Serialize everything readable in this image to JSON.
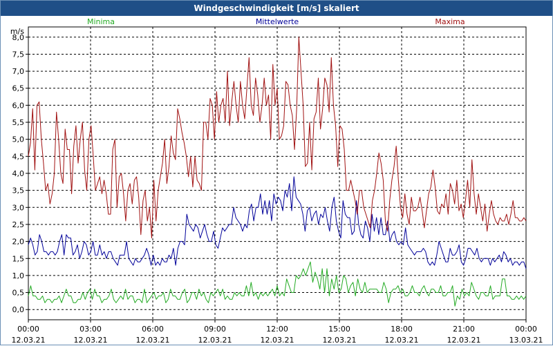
{
  "chart_data": {
    "type": "line",
    "title": "Windgeschwindigkeit [m/s] skaliert",
    "ylabel": "m/s",
    "ylim": [
      -0.3,
      8.3
    ],
    "yticks": [
      "0,0",
      "0,5",
      "1,0",
      "1,5",
      "2,0",
      "2,5",
      "3,0",
      "3,5",
      "4,0",
      "4,5",
      "5,0",
      "5,5",
      "6,0",
      "6,5",
      "7,0",
      "7,5",
      "8,0"
    ],
    "xlim": [
      0,
      24
    ],
    "xticks": [
      {
        "time": "00:00",
        "date": "12.03.21"
      },
      {
        "time": "03:00",
        "date": "12.03.21"
      },
      {
        "time": "06:00",
        "date": "12.03.21"
      },
      {
        "time": "09:00",
        "date": "12.03.21"
      },
      {
        "time": "12:00",
        "date": "12.03.21"
      },
      {
        "time": "15:00",
        "date": "12.03.21"
      },
      {
        "time": "18:00",
        "date": "12.03.21"
      },
      {
        "time": "21:00",
        "date": "12.03.21"
      },
      {
        "time": "00:00",
        "date": "13.03.21"
      }
    ],
    "grid": true,
    "legend_placement": "top",
    "series": [
      {
        "name": "Minima",
        "color": "#22aa22",
        "values": [
          0.4,
          0.7,
          0.4,
          0.4,
          0.3,
          0.3,
          0.4,
          0.2,
          0.3,
          0.3,
          0.2,
          0.3,
          0.3,
          0.4,
          0.2,
          0.4,
          0.6,
          0.4,
          0.4,
          0.2,
          0.2,
          0.3,
          0.3,
          0.5,
          0.3,
          0.5,
          0.6,
          0.3,
          0.6,
          0.4,
          0.4,
          0.2,
          0.3,
          0.3,
          0.4,
          0.6,
          0.3,
          0.2,
          0.3,
          0.4,
          0.3,
          0.6,
          0.3,
          0.4,
          0.4,
          0.2,
          0.3,
          0.3,
          0.2,
          0.6,
          0.2,
          0.3,
          0.4,
          0.5,
          0.3,
          0.4,
          0.4,
          0.5,
          0.2,
          0.3,
          0.6,
          0.4,
          0.4,
          0.3,
          0.3,
          0.5,
          0.6,
          0.2,
          0.3,
          0.5,
          0.5,
          0.3,
          0.6,
          0.4,
          0.5,
          0.3,
          0.2,
          0.5,
          0.4,
          0.5,
          0.6,
          0.4,
          0.6,
          0.3,
          0.4,
          0.3,
          0.3,
          0.5,
          0.4,
          0.5,
          0.4,
          0.4,
          0.7,
          0.4,
          0.8,
          0.4,
          0.5,
          0.3,
          0.5,
          0.4,
          0.5,
          0.4,
          0.5,
          0.6,
          0.4,
          0.7,
          0.4,
          0.5,
          0.4,
          0.9,
          0.7,
          0.5,
          0.5,
          1.0,
          0.9,
          1.0,
          1.2,
          1.0,
          1.2,
          1.4,
          0.8,
          1.1,
          0.9,
          0.6,
          1.2,
          0.5,
          1.2,
          0.4,
          0.9,
          0.6,
          1.0,
          0.5,
          0.6,
          1.0,
          0.9,
          0.5,
          0.7,
          0.8,
          0.4,
          0.9,
          0.6,
          0.5,
          0.8,
          0.5,
          0.6,
          0.6,
          0.6,
          0.6,
          0.5,
          0.5,
          0.8,
          0.6,
          0.2,
          0.5,
          0.6,
          0.6,
          0.7,
          0.5,
          0.6,
          0.4,
          0.4,
          0.5,
          0.7,
          0.5,
          0.5,
          0.4,
          0.6,
          0.7,
          0.5,
          0.4,
          0.6,
          0.6,
          0.5,
          0.5,
          0.7,
          0.4,
          0.4,
          0.5,
          0.5,
          0.7,
          0.1,
          0.4,
          0.3,
          0.6,
          0.4,
          0.5,
          0.4,
          0.8,
          0.6,
          0.4,
          0.3,
          0.5,
          0.5,
          0.4,
          0.4,
          0.7,
          0.3,
          0.4,
          0.4,
          0.4,
          0.9,
          0.9,
          0.4,
          0.4,
          0.3,
          0.3,
          0.4,
          0.3,
          0.4,
          0.3,
          0.4
        ]
      },
      {
        "name": "Mittelwerte",
        "color": "#000099",
        "values": [
          1.9,
          2.1,
          1.9,
          1.6,
          1.7,
          2.2,
          2.0,
          1.7,
          1.7,
          1.6,
          1.7,
          1.7,
          1.6,
          1.7,
          2.0,
          2.2,
          1.6,
          2.2,
          2.1,
          2.1,
          1.6,
          1.7,
          1.9,
          1.5,
          1.7,
          2.0,
          1.9,
          1.6,
          1.7,
          2.0,
          1.6,
          1.6,
          1.9,
          1.6,
          1.7,
          1.5,
          1.7,
          1.7,
          1.5,
          1.4,
          1.3,
          1.6,
          1.6,
          1.6,
          2.0,
          1.5,
          1.4,
          1.3,
          1.5,
          1.4,
          1.4,
          1.5,
          1.6,
          1.8,
          1.6,
          1.3,
          1.6,
          1.3,
          1.4,
          1.3,
          1.5,
          1.4,
          1.4,
          1.6,
          1.5,
          1.8,
          1.3,
          1.8,
          2.0,
          2.0,
          1.9,
          2.8,
          2.5,
          2.4,
          2.3,
          2.5,
          2.4,
          2.1,
          2.3,
          2.5,
          2.2,
          2.0,
          2.0,
          2.3,
          1.9,
          1.8,
          2.1,
          2.4,
          2.3,
          2.4,
          2.5,
          2.5,
          3.0,
          2.7,
          2.6,
          2.5,
          2.3,
          2.5,
          2.4,
          2.9,
          3.1,
          2.6,
          3.0,
          3.0,
          3.4,
          2.8,
          3.2,
          2.8,
          3.2,
          2.6,
          3.4,
          3.1,
          3.3,
          3.2,
          2.9,
          3.5,
          3.3,
          3.7,
          2.9,
          3.9,
          3.3,
          3.2,
          3.1,
          2.8,
          2.3,
          2.9,
          3.0,
          2.6,
          2.8,
          2.9,
          2.5,
          2.8,
          2.7,
          3.0,
          2.6,
          2.3,
          3.0,
          3.3,
          2.6,
          2.3,
          2.1,
          3.2,
          2.8,
          2.7,
          2.7,
          2.2,
          2.3,
          3.2,
          2.5,
          2.2,
          2.1,
          2.6,
          2.4,
          2.0,
          2.8,
          2.3,
          2.7,
          2.2,
          2.7,
          2.2,
          2.2,
          2.6,
          2.0,
          2.2,
          2.3,
          2.0,
          1.9,
          2.0,
          1.9,
          2.4,
          1.9,
          1.8,
          1.7,
          1.6,
          1.7,
          1.7,
          1.7,
          1.8,
          1.7,
          1.4,
          1.3,
          1.4,
          1.3,
          1.6,
          2.0,
          1.8,
          1.6,
          1.4,
          1.4,
          1.8,
          1.6,
          1.6,
          1.7,
          1.9,
          1.4,
          1.3,
          1.5,
          1.8,
          1.8,
          1.7,
          1.6,
          1.8,
          1.5,
          1.4,
          1.5,
          1.5,
          1.5,
          1.3,
          1.5,
          1.4,
          1.5,
          1.6,
          1.4,
          1.7,
          1.6,
          1.4,
          1.5,
          1.3,
          1.4,
          1.4,
          1.3,
          1.4,
          1.4,
          1.2
        ]
      },
      {
        "name": "Maxima",
        "color": "#a01010",
        "values": [
          4.5,
          4.9,
          5.9,
          4.1,
          6.0,
          6.1,
          5.0,
          4.3,
          3.5,
          3.7,
          3.1,
          3.4,
          4.0,
          5.8,
          5.0,
          4.0,
          3.7,
          5.3,
          4.7,
          4.7,
          3.4,
          4.8,
          5.4,
          4.3,
          5.0,
          5.5,
          4.1,
          3.5,
          5.0,
          5.4,
          4.5,
          3.5,
          3.7,
          3.9,
          3.4,
          3.8,
          3.4,
          2.8,
          2.8,
          4.7,
          5.0,
          3.0,
          3.9,
          4.0,
          3.4,
          2.6,
          3.5,
          3.7,
          3.1,
          3.8,
          3.9,
          3.3,
          2.2,
          3.2,
          3.5,
          2.6,
          3.0,
          2.1,
          3.8,
          2.6,
          3.5,
          3.9,
          4.3,
          5.0,
          3.7,
          4.2,
          5.1,
          4.6,
          4.4,
          5.9,
          5.6,
          5.2,
          4.9,
          4.5,
          3.9,
          4.5,
          3.6,
          4.5,
          3.8,
          3.7,
          3.5,
          5.5,
          5.5,
          5.0,
          6.2,
          6.0,
          5.0,
          6.4,
          5.5,
          6.0,
          6.2,
          5.5,
          7.0,
          5.4,
          6.1,
          6.7,
          6.0,
          5.5,
          6.7,
          6.0,
          5.6,
          6.5,
          7.4,
          6.0,
          5.7,
          6.8,
          6.3,
          5.5,
          6.0,
          6.8,
          6.0,
          6.3,
          5.0,
          7.2,
          6.0,
          6.5,
          5.0,
          5.1,
          5.4,
          6.7,
          6.6,
          6.0,
          5.7,
          4.7,
          5.9,
          8.0,
          7.0,
          6.0,
          4.2,
          4.3,
          5.5,
          4.1,
          5.6,
          5.8,
          6.8,
          5.3,
          5.9,
          6.8,
          6.6,
          5.8,
          7.4,
          6.0,
          5.4,
          4.2,
          5.4,
          5.3,
          4.7,
          3.5,
          3.5,
          3.8,
          3.5,
          3.2,
          2.8,
          3.5,
          3.5,
          3.0,
          2.8,
          2.6,
          2.4,
          3.2,
          3.5,
          4.0,
          4.6,
          4.3,
          3.8,
          2.6,
          2.3,
          3.2,
          3.8,
          4.2,
          4.8,
          3.8,
          3.0,
          2.7,
          3.4,
          2.8,
          2.5,
          3.3,
          2.9,
          2.9,
          3.0,
          3.3,
          2.9,
          2.4,
          2.9,
          3.4,
          3.6,
          4.1,
          3.6,
          2.9,
          2.8,
          3.1,
          3.0,
          3.4,
          2.8,
          3.7,
          3.5,
          3.1,
          3.8,
          2.9,
          3.1,
          2.7,
          3.2,
          3.8,
          3.0,
          4.4,
          3.4,
          2.8,
          3.4,
          3.0,
          2.6,
          3.1,
          2.3,
          2.8,
          3.2,
          2.8,
          2.6,
          2.5,
          2.7,
          2.6,
          2.6,
          2.8,
          2.5,
          2.8,
          3.2,
          2.7,
          2.7,
          2.6,
          2.6,
          2.7,
          2.6
        ]
      }
    ]
  }
}
